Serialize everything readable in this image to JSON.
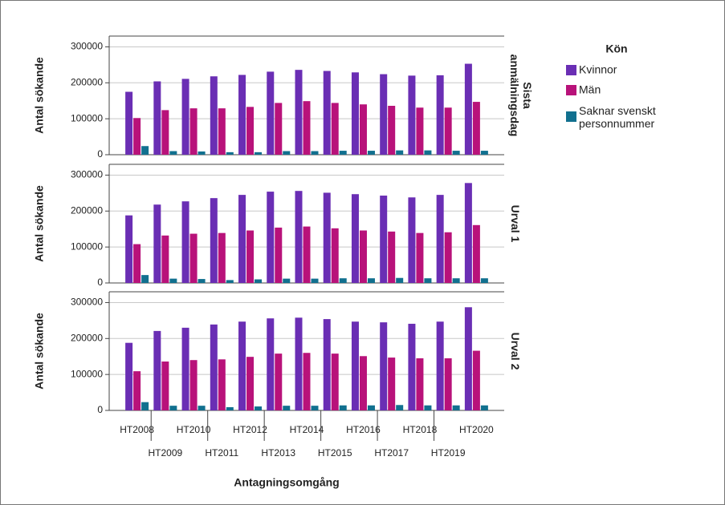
{
  "chart_data": {
    "type": "bar",
    "xlabel": "Antagningsomgång",
    "ylabel": "Antal sökande",
    "legend_title": "Kön",
    "categories": [
      "HT2008",
      "HT2009",
      "HT2010",
      "HT2011",
      "HT2012",
      "HT2013",
      "HT2014",
      "HT2015",
      "HT2016",
      "HT2017",
      "HT2018",
      "HT2019",
      "HT2020"
    ],
    "series": [
      {
        "name": "Kvinnor",
        "color": "#6a2eb4"
      },
      {
        "name": "Män",
        "color": "#b8127a"
      },
      {
        "name": [
          "Saknar svenskt",
          "personnummer"
        ],
        "color": "#11708f"
      }
    ],
    "panels": [
      {
        "label": [
          "Sista",
          "anmälningsdag"
        ],
        "values": [
          [
            175000,
            204000,
            211000,
            218000,
            222000,
            231000,
            236000,
            233000,
            229000,
            224000,
            220000,
            221000,
            253000
          ],
          [
            102000,
            124000,
            129000,
            129000,
            133000,
            144000,
            149000,
            144000,
            140000,
            136000,
            131000,
            131000,
            147000
          ],
          [
            24000,
            10000,
            9000,
            7000,
            7000,
            10000,
            10000,
            11000,
            11000,
            12000,
            12000,
            11000,
            11000
          ]
        ]
      },
      {
        "label": [
          "Urval 1"
        ],
        "values": [
          [
            188000,
            218000,
            227000,
            236000,
            245000,
            254000,
            256000,
            251000,
            247000,
            243000,
            238000,
            245000,
            278000
          ],
          [
            108000,
            132000,
            137000,
            139000,
            146000,
            154000,
            157000,
            152000,
            146000,
            143000,
            139000,
            141000,
            161000
          ],
          [
            22000,
            12000,
            11000,
            8000,
            10000,
            12000,
            12000,
            13000,
            13000,
            14000,
            13000,
            13000,
            13000
          ]
        ]
      },
      {
        "label": [
          "Urval 2"
        ],
        "values": [
          [
            188000,
            221000,
            230000,
            239000,
            247000,
            256000,
            258000,
            254000,
            247000,
            245000,
            241000,
            247000,
            287000
          ],
          [
            109000,
            136000,
            140000,
            142000,
            149000,
            158000,
            160000,
            158000,
            151000,
            147000,
            145000,
            145000,
            166000
          ],
          [
            23000,
            13000,
            13000,
            9000,
            11000,
            13000,
            13000,
            14000,
            14000,
            15000,
            14000,
            14000,
            14000
          ]
        ]
      }
    ],
    "ylim": [
      0,
      330000
    ],
    "yticks": [
      0,
      100000,
      200000,
      300000
    ],
    "grid": true
  }
}
